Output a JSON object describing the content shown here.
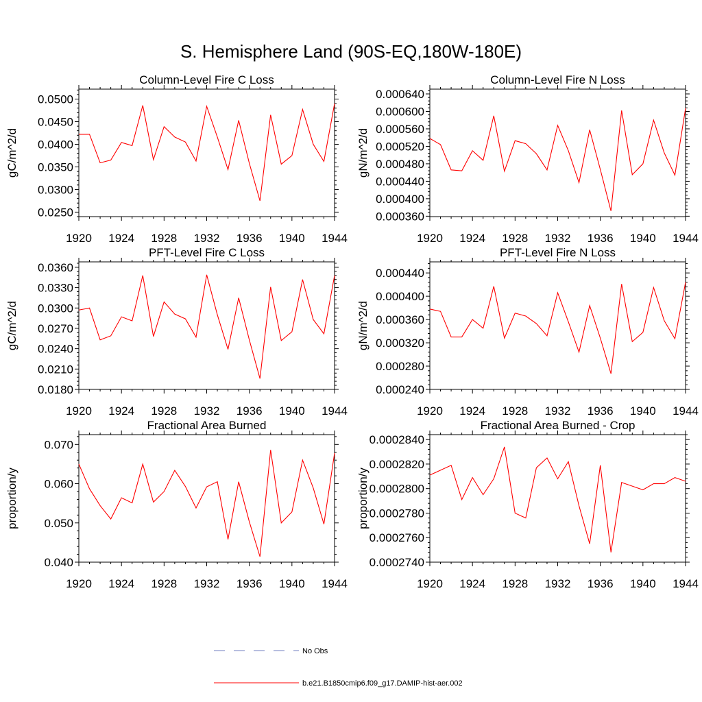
{
  "title": "S. Hemisphere Land (90S-EQ,180W-180E)",
  "legend": [
    {
      "label": "No Obs",
      "color": "#6f7fc0",
      "dash": true
    },
    {
      "label": "b.e21.B1850cmip6.f09_g17.DAMIP-hist-aer.002",
      "color": "#ff0000",
      "dash": false
    }
  ],
  "chart_data": [
    {
      "type": "line",
      "title": "Column-Level Fire C Loss",
      "ylabel": "gC/m^2/d",
      "x": [
        1920,
        1921,
        1922,
        1923,
        1924,
        1925,
        1926,
        1927,
        1928,
        1929,
        1930,
        1931,
        1932,
        1933,
        1934,
        1935,
        1936,
        1937,
        1938,
        1939,
        1940,
        1941,
        1942,
        1943,
        1944
      ],
      "xlim": [
        1920,
        1944
      ],
      "xticks": [
        "1920",
        "1924",
        "1928",
        "1932",
        "1936",
        "1940",
        "1944"
      ],
      "ylim": [
        0.024,
        0.0522
      ],
      "yticks": [
        "0.0250",
        "0.0300",
        "0.0350",
        "0.0400",
        "0.0450",
        "0.0500"
      ],
      "ytick_values": [
        0.025,
        0.03,
        0.035,
        0.04,
        0.045,
        0.05
      ],
      "series": [
        {
          "values": [
            0.0422,
            0.0422,
            0.0359,
            0.0365,
            0.0404,
            0.0397,
            0.0486,
            0.0366,
            0.0439,
            0.0416,
            0.0405,
            0.0363,
            0.0484,
            0.0416,
            0.0344,
            0.0453,
            0.0358,
            0.0275,
            0.0465,
            0.0356,
            0.0375,
            0.0477,
            0.04,
            0.0362,
            0.049
          ],
          "color": "#ff0000"
        }
      ]
    },
    {
      "type": "line",
      "title": "Column-Level Fire N Loss",
      "ylabel": "gN/m^2/d",
      "x": [
        1920,
        1921,
        1922,
        1923,
        1924,
        1925,
        1926,
        1927,
        1928,
        1929,
        1930,
        1931,
        1932,
        1933,
        1934,
        1935,
        1936,
        1937,
        1938,
        1939,
        1940,
        1941,
        1942,
        1943,
        1944
      ],
      "xlim": [
        1920,
        1944
      ],
      "xticks": [
        "1920",
        "1924",
        "1928",
        "1932",
        "1936",
        "1940",
        "1944"
      ],
      "ylim": [
        0.000359,
        0.000651
      ],
      "yticks": [
        "0.000360",
        "0.000400",
        "0.000440",
        "0.000480",
        "0.000520",
        "0.000560",
        "0.000600",
        "0.000640"
      ],
      "ytick_values": [
        0.00036,
        0.0004,
        0.00044,
        0.00048,
        0.00052,
        0.00056,
        0.0006,
        0.00064
      ],
      "series": [
        {
          "values": [
            0.000538,
            0.000524,
            0.000466,
            0.000464,
            0.00051,
            0.000488,
            0.00059,
            0.000463,
            0.000533,
            0.000526,
            0.000503,
            0.000466,
            0.000568,
            0.00051,
            0.000437,
            0.000558,
            0.000467,
            0.000372,
            0.000602,
            0.000455,
            0.00048,
            0.00058,
            0.000505,
            0.000454,
            0.000607
          ],
          "color": "#ff0000"
        }
      ]
    },
    {
      "type": "line",
      "title": "PFT-Level Fire C Loss",
      "ylabel": "gC/m^2/d",
      "x": [
        1920,
        1921,
        1922,
        1923,
        1924,
        1925,
        1926,
        1927,
        1928,
        1929,
        1930,
        1931,
        1932,
        1933,
        1934,
        1935,
        1936,
        1937,
        1938,
        1939,
        1940,
        1941,
        1942,
        1943,
        1944
      ],
      "xlim": [
        1920,
        1944
      ],
      "xticks": [
        "1920",
        "1924",
        "1928",
        "1932",
        "1936",
        "1940",
        "1944"
      ],
      "ylim": [
        0.018,
        0.0368
      ],
      "yticks": [
        "0.0180",
        "0.0210",
        "0.0240",
        "0.0270",
        "0.0300",
        "0.0330",
        "0.0360"
      ],
      "ytick_values": [
        0.018,
        0.021,
        0.024,
        0.027,
        0.03,
        0.033,
        0.036
      ],
      "series": [
        {
          "values": [
            0.0297,
            0.03,
            0.0253,
            0.0259,
            0.0287,
            0.0281,
            0.0348,
            0.0258,
            0.0309,
            0.0291,
            0.0284,
            0.0257,
            0.0349,
            0.029,
            0.0239,
            0.0315,
            0.0253,
            0.0196,
            0.0331,
            0.0252,
            0.0265,
            0.0342,
            0.0283,
            0.0262,
            0.0348
          ],
          "color": "#ff0000"
        }
      ]
    },
    {
      "type": "line",
      "title": "PFT-Level Fire N Loss",
      "ylabel": "gN/m^2/d",
      "x": [
        1920,
        1921,
        1922,
        1923,
        1924,
        1925,
        1926,
        1927,
        1928,
        1929,
        1930,
        1931,
        1932,
        1933,
        1934,
        1935,
        1936,
        1937,
        1938,
        1939,
        1940,
        1941,
        1942,
        1943,
        1944
      ],
      "xlim": [
        1920,
        1944
      ],
      "xticks": [
        "1920",
        "1924",
        "1928",
        "1932",
        "1936",
        "1940",
        "1944"
      ],
      "ylim": [
        0.00024,
        0.000459
      ],
      "yticks": [
        "0.000240",
        "0.000280",
        "0.000320",
        "0.000360",
        "0.000400",
        "0.000440"
      ],
      "ytick_values": [
        0.00024,
        0.00028,
        0.00032,
        0.00036,
        0.0004,
        0.00044
      ],
      "series": [
        {
          "values": [
            0.000378,
            0.000374,
            0.00033,
            0.00033,
            0.00036,
            0.000345,
            0.000417,
            0.000328,
            0.000371,
            0.000366,
            0.000353,
            0.000332,
            0.000406,
            0.000356,
            0.000304,
            0.000384,
            0.000328,
            0.000267,
            0.000421,
            0.000322,
            0.000338,
            0.000415,
            0.000358,
            0.000327,
            0.000424
          ],
          "color": "#ff0000"
        }
      ]
    },
    {
      "type": "line",
      "title": "Fractional Area Burned",
      "ylabel": "proportion/y",
      "x": [
        1920,
        1921,
        1922,
        1923,
        1924,
        1925,
        1926,
        1927,
        1928,
        1929,
        1930,
        1931,
        1932,
        1933,
        1934,
        1935,
        1936,
        1937,
        1938,
        1939,
        1940,
        1941,
        1942,
        1943,
        1944
      ],
      "xlim": [
        1920,
        1944
      ],
      "xticks": [
        "1920",
        "1924",
        "1928",
        "1932",
        "1936",
        "1940",
        "1944"
      ],
      "ylim": [
        0.04,
        0.0725
      ],
      "yticks": [
        "0.040",
        "0.050",
        "0.060",
        "0.070"
      ],
      "ytick_values": [
        0.04,
        0.05,
        0.06,
        0.07
      ],
      "series": [
        {
          "values": [
            0.065,
            0.0587,
            0.0544,
            0.051,
            0.0564,
            0.0551,
            0.065,
            0.0553,
            0.058,
            0.0634,
            0.0593,
            0.0538,
            0.0592,
            0.0605,
            0.0458,
            0.0605,
            0.0503,
            0.0414,
            0.0686,
            0.05,
            0.0528,
            0.066,
            0.0589,
            0.0497,
            0.0678
          ],
          "color": "#ff0000"
        }
      ]
    },
    {
      "type": "line",
      "title": "Fractional Area Burned - Crop",
      "ylabel": "proportion/y",
      "x": [
        1920,
        1921,
        1922,
        1923,
        1924,
        1925,
        1926,
        1927,
        1928,
        1929,
        1930,
        1931,
        1932,
        1933,
        1934,
        1935,
        1936,
        1937,
        1938,
        1939,
        1940,
        1941,
        1942,
        1943,
        1944
      ],
      "xlim": [
        1920,
        1944
      ],
      "xticks": [
        "1920",
        "1924",
        "1928",
        "1932",
        "1936",
        "1940",
        "1944"
      ],
      "ylim": [
        0.000274,
        0.0002844
      ],
      "yticks": [
        "0.0002740",
        "0.0002760",
        "0.0002780",
        "0.0002800",
        "0.0002820",
        "0.0002840"
      ],
      "ytick_values": [
        0.000274,
        0.000276,
        0.000278,
        0.00028,
        0.000282,
        0.000284
      ],
      "series": [
        {
          "values": [
            0.0002811,
            0.0002815,
            0.0002819,
            0.0002791,
            0.0002809,
            0.0002795,
            0.0002808,
            0.0002834,
            0.000278,
            0.0002776,
            0.0002817,
            0.0002825,
            0.0002808,
            0.0002822,
            0.0002786,
            0.0002755,
            0.0002819,
            0.0002748,
            0.0002805,
            0.0002802,
            0.0002799,
            0.0002804,
            0.0002804,
            0.0002809,
            0.0002806
          ],
          "color": "#ff0000"
        }
      ]
    }
  ]
}
